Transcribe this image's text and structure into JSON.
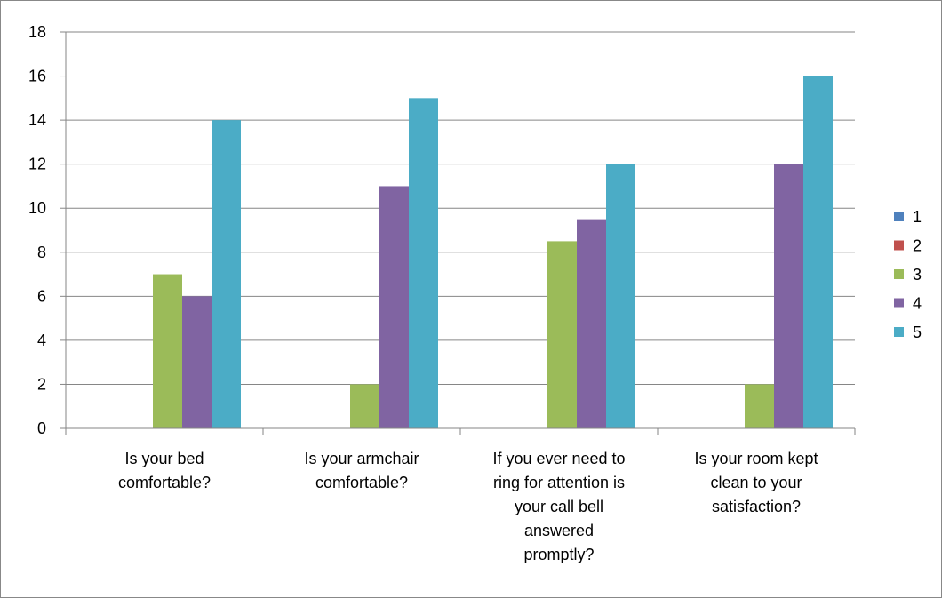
{
  "chart_data": {
    "type": "bar",
    "title": "",
    "xlabel": "",
    "ylabel": "",
    "ylim": [
      0,
      18
    ],
    "yticks": [
      0,
      2,
      4,
      6,
      8,
      10,
      12,
      14,
      16,
      18
    ],
    "grid": true,
    "legend_position": "right",
    "categories": [
      [
        "Is your bed",
        "comfortable?"
      ],
      [
        "Is your armchair",
        "comfortable?"
      ],
      [
        "If you ever need to",
        "ring for attention is",
        "your call bell",
        "answered",
        "promptly?"
      ],
      [
        "Is your room kept",
        "clean to your",
        "satisfaction?"
      ]
    ],
    "series": [
      {
        "name": "1",
        "color": "#4F81BD",
        "values": [
          0,
          0,
          0,
          0
        ]
      },
      {
        "name": "2",
        "color": "#C0504D",
        "values": [
          0,
          0,
          0,
          0
        ]
      },
      {
        "name": "3",
        "color": "#9BBB59",
        "values": [
          7,
          2,
          8.5,
          2
        ]
      },
      {
        "name": "4",
        "color": "#8064A2",
        "values": [
          6,
          11,
          9.5,
          12
        ]
      },
      {
        "name": "5",
        "color": "#4BACC6",
        "values": [
          14,
          15,
          12,
          16
        ]
      }
    ]
  }
}
